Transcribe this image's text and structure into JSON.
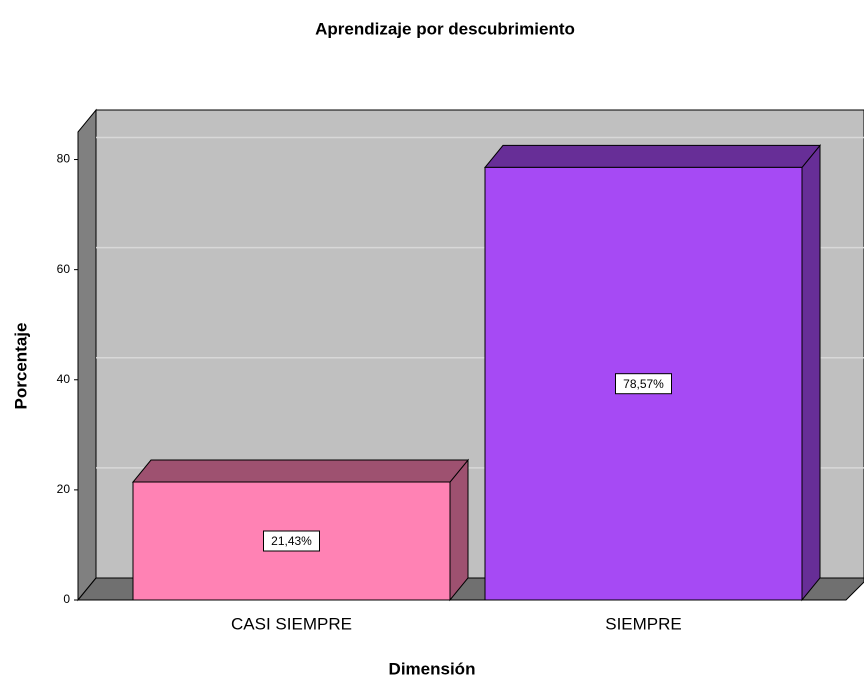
{
  "chart_data": {
    "type": "bar3d",
    "title": "Aprendizaje por descubrimiento",
    "x_label": "Dimensión",
    "y_label": "Porcentaje",
    "categories": [
      "CASI SIEMPRE",
      "SIEMPRE"
    ],
    "values": [
      21.43,
      78.57
    ],
    "value_labels": [
      "21,43%",
      "78,57%"
    ],
    "colors": [
      "#ff82b4",
      "#a64af4"
    ],
    "ylim": [
      0,
      85
    ],
    "yticks": [
      0,
      20,
      40,
      60,
      80
    ],
    "grid": true
  }
}
